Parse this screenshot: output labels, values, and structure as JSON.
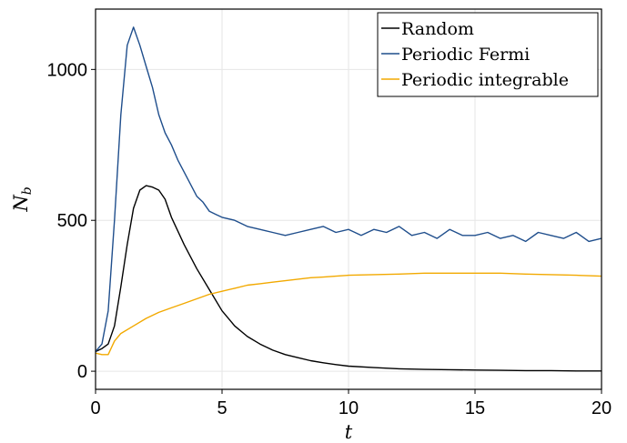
{
  "chart_data": {
    "type": "line",
    "xlabel": "t",
    "ylabel": "N",
    "ylabel_sub": "b",
    "xlim": [
      0,
      20
    ],
    "ylim": [
      -60,
      1200
    ],
    "xticks": [
      0,
      5,
      10,
      15,
      20
    ],
    "yticks": [
      0,
      500,
      1000
    ],
    "grid": true,
    "legend_position": "top-right",
    "series": [
      {
        "name": "Random",
        "color": "#000000",
        "x": [
          0,
          0.25,
          0.5,
          0.75,
          1.0,
          1.25,
          1.5,
          1.75,
          2.0,
          2.25,
          2.5,
          2.75,
          3.0,
          3.5,
          4.0,
          4.5,
          5.0,
          5.5,
          6.0,
          6.5,
          7.0,
          7.5,
          8.0,
          8.5,
          9.0,
          9.5,
          10.0,
          11.0,
          12.0,
          13.0,
          14.0,
          15.0,
          16.0,
          17.0,
          18.0,
          19.0,
          20.0
        ],
        "y": [
          65,
          75,
          90,
          150,
          280,
          420,
          540,
          600,
          615,
          610,
          600,
          570,
          510,
          420,
          340,
          270,
          200,
          150,
          115,
          90,
          70,
          55,
          45,
          35,
          28,
          22,
          17,
          12,
          8,
          6,
          5,
          4,
          3,
          2,
          2,
          1,
          1
        ]
      },
      {
        "name": "Periodic Fermi",
        "color": "#1f4e8c",
        "x": [
          0,
          0.25,
          0.5,
          0.75,
          1.0,
          1.25,
          1.5,
          1.75,
          2.0,
          2.25,
          2.5,
          2.75,
          3.0,
          3.25,
          3.5,
          3.75,
          4.0,
          4.25,
          4.5,
          4.75,
          5.0,
          5.5,
          6.0,
          6.5,
          7.0,
          7.5,
          8.0,
          8.5,
          9.0,
          9.5,
          10.0,
          10.5,
          11.0,
          11.5,
          12.0,
          12.5,
          13.0,
          13.5,
          14.0,
          14.5,
          15.0,
          15.5,
          16.0,
          16.5,
          17.0,
          17.5,
          18.0,
          18.5,
          19.0,
          19.5,
          20.0
        ],
        "y": [
          65,
          90,
          200,
          500,
          850,
          1080,
          1140,
          1080,
          1010,
          940,
          850,
          790,
          750,
          700,
          660,
          620,
          580,
          560,
          530,
          520,
          510,
          500,
          480,
          470,
          460,
          450,
          460,
          470,
          480,
          460,
          470,
          450,
          470,
          460,
          480,
          450,
          460,
          440,
          470,
          450,
          450,
          460,
          440,
          450,
          430,
          460,
          450,
          440,
          460,
          430,
          440
        ]
      },
      {
        "name": "Periodic integrable",
        "color": "#f2a900",
        "x": [
          0,
          0.25,
          0.5,
          0.75,
          1.0,
          1.5,
          2.0,
          2.5,
          3.0,
          3.5,
          4.0,
          4.5,
          5.0,
          5.5,
          6.0,
          6.5,
          7.0,
          7.5,
          8.0,
          8.5,
          9.0,
          9.5,
          10.0,
          11.0,
          12.0,
          13.0,
          14.0,
          15.0,
          16.0,
          17.0,
          18.0,
          19.0,
          20.0
        ],
        "y": [
          60,
          55,
          55,
          100,
          125,
          150,
          175,
          195,
          210,
          225,
          240,
          255,
          265,
          275,
          285,
          290,
          295,
          300,
          305,
          310,
          312,
          315,
          318,
          320,
          322,
          325,
          325,
          325,
          325,
          322,
          320,
          318,
          315
        ]
      }
    ]
  }
}
